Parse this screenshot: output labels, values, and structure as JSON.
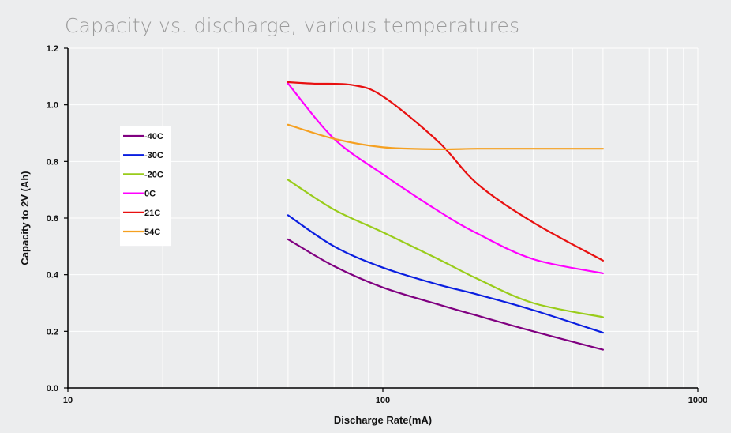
{
  "chart_data": {
    "type": "line",
    "title": "Capacity vs. discharge, various temperatures",
    "xlabel": "Discharge Rate(mA)",
    "ylabel": "Capacity to 2V (Ah)",
    "x_scale": "log",
    "xlim": [
      10,
      1000
    ],
    "ylim": [
      0,
      1.2
    ],
    "x_ticks": [
      "10",
      "100",
      "1000"
    ],
    "y_ticks": [
      "0.0",
      "0.2",
      "0.4",
      "0.6",
      "0.8",
      "1.0",
      "1.2"
    ],
    "grid": true,
    "legend_position": "left",
    "series": [
      {
        "name": "-40C",
        "color": "#800080",
        "x": [
          50,
          70,
          100,
          150,
          200,
          300,
          500
        ],
        "y": [
          0.525,
          0.43,
          0.355,
          0.295,
          0.255,
          0.2,
          0.135
        ]
      },
      {
        "name": "-30C",
        "color": "#0a1ee0",
        "x": [
          50,
          70,
          100,
          150,
          200,
          300,
          500
        ],
        "y": [
          0.61,
          0.5,
          0.425,
          0.365,
          0.33,
          0.275,
          0.195
        ]
      },
      {
        "name": "-20C",
        "color": "#99cc1a",
        "x": [
          50,
          70,
          100,
          150,
          200,
          300,
          500
        ],
        "y": [
          0.735,
          0.63,
          0.55,
          0.455,
          0.385,
          0.3,
          0.25
        ]
      },
      {
        "name": "0C",
        "color": "#ff00ff",
        "x": [
          50,
          70,
          100,
          150,
          200,
          300,
          500
        ],
        "y": [
          1.075,
          0.88,
          0.755,
          0.625,
          0.545,
          0.455,
          0.405
        ]
      },
      {
        "name": "21C",
        "color": "#e81010",
        "x": [
          50,
          60,
          80,
          100,
          150,
          200,
          300,
          500
        ],
        "y": [
          1.08,
          1.075,
          1.07,
          1.03,
          0.87,
          0.72,
          0.585,
          0.45
        ]
      },
      {
        "name": "54C",
        "color": "#f5a020",
        "x": [
          50,
          70,
          100,
          150,
          200,
          300,
          500
        ],
        "y": [
          0.93,
          0.88,
          0.85,
          0.843,
          0.845,
          0.845,
          0.845
        ]
      }
    ]
  }
}
